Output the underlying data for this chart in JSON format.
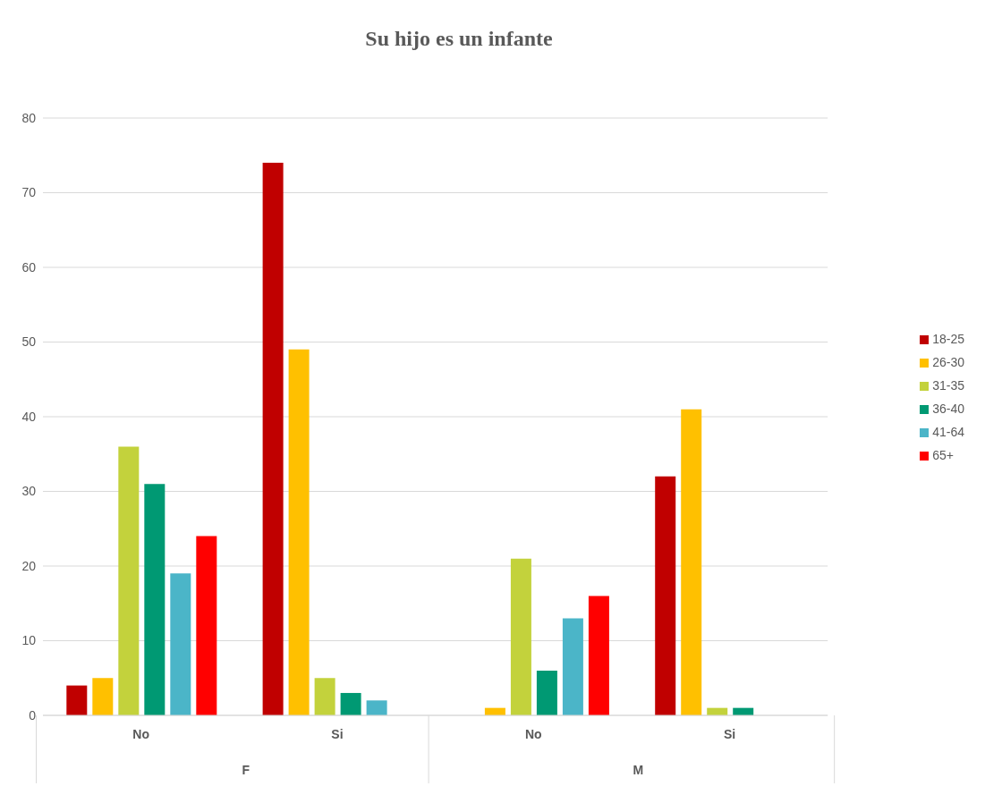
{
  "chart_data": {
    "type": "bar",
    "title": "Su hijo es un infante",
    "categories": [
      "No",
      "Si",
      "No",
      "Si"
    ],
    "annotations": [
      "F",
      "M"
    ],
    "series": [
      {
        "name": "18-25",
        "color": "#c00000",
        "values": [
          4,
          74,
          null,
          32
        ]
      },
      {
        "name": "26-30",
        "color": "#ffc000",
        "values": [
          5,
          49,
          1,
          41
        ]
      },
      {
        "name": "31-35",
        "color": "#c3d23c",
        "values": [
          36,
          5,
          21,
          1
        ]
      },
      {
        "name": "36-40",
        "color": "#009973",
        "values": [
          31,
          3,
          6,
          1
        ]
      },
      {
        "name": "41-64",
        "color": "#4bb5c8",
        "values": [
          19,
          2,
          13,
          null
        ]
      },
      {
        "name": "65+",
        "color": "#ff0000",
        "values": [
          24,
          null,
          16,
          null
        ]
      }
    ],
    "ylim": [
      0,
      80
    ],
    "yticks": [
      0,
      10,
      20,
      30,
      40,
      50,
      60,
      70,
      80
    ],
    "grid": "y",
    "legend": "right"
  }
}
